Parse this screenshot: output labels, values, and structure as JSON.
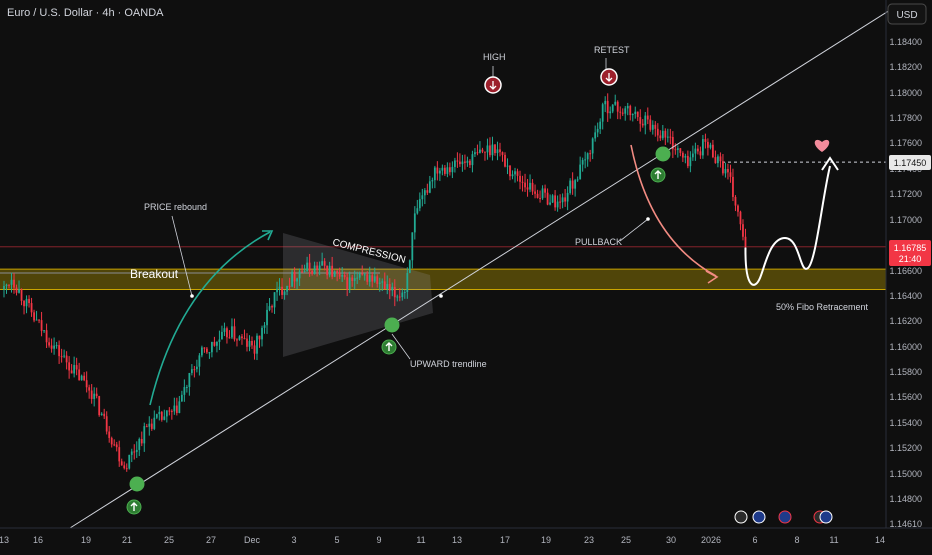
{
  "header": {
    "title": "Euro / U.S. Dollar · 4h · OANDA"
  },
  "currency_button": {
    "label": "USD"
  },
  "colors": {
    "background": "#0f0f0f",
    "up_candle": "#22ab94",
    "down_candle": "#f23645",
    "trendline": "#d1d4dc",
    "zone_fill": "#5c4f08",
    "zone_border": "#c9a400",
    "last_price": "#f23645",
    "marker_green": "#4caf50",
    "arrow_pink": "#f28b82",
    "heart": "#f28b9b"
  },
  "chart_data": {
    "type": "candlestick",
    "instrument": "Euro / U.S. Dollar",
    "timeframe": "4h",
    "source": "OANDA",
    "currency": "USD",
    "ylim": [
      1.1461,
      1.185
    ],
    "y_ticks": [
      "1.18400",
      "1.18200",
      "1.18000",
      "1.17800",
      "1.17600",
      "1.17400",
      "1.17200",
      "1.17000",
      "1.16800",
      "1.16600",
      "1.16400",
      "1.16200",
      "1.16000",
      "1.15800",
      "1.15600",
      "1.15400",
      "1.15200",
      "1.15000",
      "1.14800",
      "1.14610"
    ],
    "x_ticks": [
      "13",
      "16",
      "19",
      "21",
      "25",
      "27",
      "Dec",
      "3",
      "5",
      "9",
      "11",
      "13",
      "17",
      "19",
      "23",
      "25",
      "30",
      "2026",
      "6",
      "8",
      "11",
      "14"
    ],
    "anchors": [
      {
        "t": 0,
        "p": 1.1645
      },
      {
        "t": 3,
        "p": 1.1655
      },
      {
        "t": 12,
        "p": 1.1622
      },
      {
        "t": 22,
        "p": 1.1595
      },
      {
        "t": 35,
        "p": 1.1565
      },
      {
        "t": 48,
        "p": 1.1506
      },
      {
        "t": 58,
        "p": 1.154
      },
      {
        "t": 68,
        "p": 1.1548
      },
      {
        "t": 78,
        "p": 1.1592
      },
      {
        "t": 90,
        "p": 1.1612
      },
      {
        "t": 100,
        "p": 1.1598
      },
      {
        "t": 108,
        "p": 1.164
      },
      {
        "t": 118,
        "p": 1.166
      },
      {
        "t": 128,
        "p": 1.1663
      },
      {
        "t": 136,
        "p": 1.165
      },
      {
        "t": 146,
        "p": 1.1655
      },
      {
        "t": 156,
        "p": 1.164
      },
      {
        "t": 160,
        "p": 1.1645
      },
      {
        "t": 164,
        "p": 1.17
      },
      {
        "t": 172,
        "p": 1.174
      },
      {
        "t": 184,
        "p": 1.1745
      },
      {
        "t": 196,
        "p": 1.1758
      },
      {
        "t": 202,
        "p": 1.1738
      },
      {
        "t": 212,
        "p": 1.1722
      },
      {
        "t": 222,
        "p": 1.1712
      },
      {
        "t": 232,
        "p": 1.1745
      },
      {
        "t": 240,
        "p": 1.179
      },
      {
        "t": 248,
        "p": 1.1785
      },
      {
        "t": 256,
        "p": 1.1778
      },
      {
        "t": 266,
        "p": 1.1762
      },
      {
        "t": 272,
        "p": 1.1745
      },
      {
        "t": 280,
        "p": 1.176
      },
      {
        "t": 286,
        "p": 1.1745
      },
      {
        "t": 290,
        "p": 1.1728
      },
      {
        "t": 296,
        "p": 1.1678
      }
    ],
    "last_price": "1.16785",
    "countdown": "21:40",
    "target_price": "1.17450",
    "zone": {
      "from": 1.1645,
      "to": 1.1661,
      "label": "50% Fibo Retracement"
    },
    "projection": [
      {
        "t": 296,
        "p": 1.1678
      },
      {
        "t": 302,
        "p": 1.1655
      },
      {
        "t": 310,
        "p": 1.1676
      },
      {
        "t": 318,
        "p": 1.1657
      },
      {
        "t": 332,
        "p": 1.1745
      }
    ]
  },
  "annotations": {
    "breakout": "Breakout",
    "price_rebound": "PRICE rebound",
    "compression": "COMPRESSION",
    "upward_trendline": "UPWARD trendline",
    "high": "HIGH",
    "retest": "RETEST",
    "pullback": "PULLBACK",
    "fibo": "50% Fibo Retracement"
  }
}
